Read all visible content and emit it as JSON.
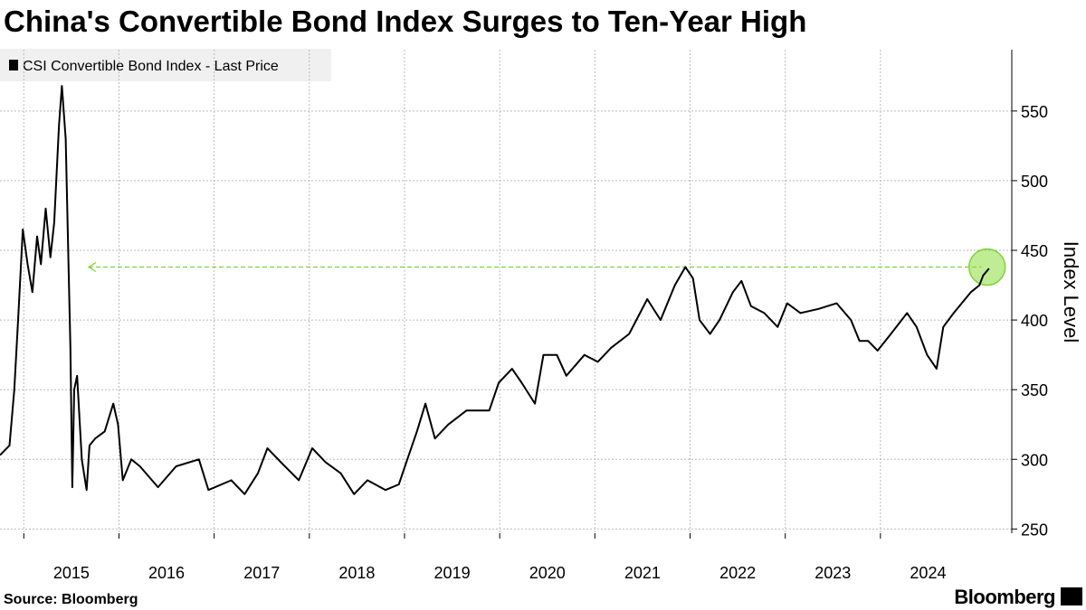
{
  "chart_data": {
    "type": "line",
    "title": "China's Convertible Bond Index Surges to Ten-Year High",
    "y_label": "Index Level",
    "source": "Source: Bloomberg",
    "brand": "Bloomberg",
    "x": [
      2014.75,
      2014.85,
      2014.9,
      2014.94,
      2014.99,
      2015.04,
      2015.09,
      2015.14,
      2015.18,
      2015.23,
      2015.28,
      2015.32,
      2015.37,
      2015.4,
      2015.44,
      2015.47,
      2015.49,
      2015.51,
      2015.53,
      2015.56,
      2015.61,
      2015.66,
      2015.69,
      2015.75,
      2015.85,
      2015.94,
      2015.99,
      2016.04,
      2016.13,
      2016.22,
      2016.41,
      2016.6,
      2016.84,
      2016.94,
      2017.18,
      2017.32,
      2017.46,
      2017.56,
      2017.7,
      2017.89,
      2018.03,
      2018.17,
      2018.33,
      2018.47,
      2018.61,
      2018.8,
      2018.94,
      2019.03,
      2019.13,
      2019.22,
      2019.32,
      2019.46,
      2019.65,
      2019.89,
      2019.99,
      2020.13,
      2020.23,
      2020.37,
      2020.46,
      2020.6,
      2020.7,
      2020.89,
      2021.03,
      2021.17,
      2021.36,
      2021.55,
      2021.69,
      2021.84,
      2021.95,
      2022.03,
      2022.1,
      2022.21,
      2022.31,
      2022.45,
      2022.54,
      2022.64,
      2022.78,
      2022.92,
      2023.02,
      2023.16,
      2023.35,
      2023.54,
      2023.69,
      2023.78,
      2023.87,
      2023.97,
      2024.11,
      2024.28,
      2024.38,
      2024.49,
      2024.59,
      2024.66,
      2024.77,
      2024.95,
      2025.04,
      2025.08,
      2025.14
    ],
    "series": [
      {
        "name": "CSI Convertible Bond Index - Last Price",
        "color": "#000000",
        "values": [
          303,
          310,
          350,
          400,
          465,
          440,
          420,
          460,
          440,
          480,
          445,
          470,
          540,
          568,
          530,
          440,
          380,
          280,
          350,
          360,
          300,
          278,
          310,
          315,
          320,
          340,
          325,
          285,
          300,
          295,
          280,
          295,
          300,
          278,
          285,
          275,
          290,
          308,
          298,
          285,
          308,
          298,
          290,
          275,
          285,
          278,
          282,
          300,
          320,
          340,
          315,
          325,
          335,
          335,
          355,
          365,
          355,
          340,
          375,
          375,
          360,
          375,
          370,
          380,
          390,
          415,
          400,
          425,
          438,
          430,
          400,
          390,
          400,
          420,
          428,
          410,
          405,
          395,
          412,
          405,
          408,
          412,
          400,
          385,
          385,
          378,
          390,
          405,
          395,
          375,
          365,
          395,
          405,
          420,
          425,
          432,
          437
        ]
      }
    ],
    "highlight_level": 438,
    "xlim": [
      2014.75,
      2025.38
    ],
    "xticks": [
      2015,
      2016,
      2017,
      2018,
      2019,
      2020,
      2021,
      2022,
      2023,
      2024
    ],
    "ylim": [
      247,
      594
    ],
    "yticks": [
      250,
      300,
      350,
      400,
      450,
      500,
      550
    ],
    "grid": true
  }
}
